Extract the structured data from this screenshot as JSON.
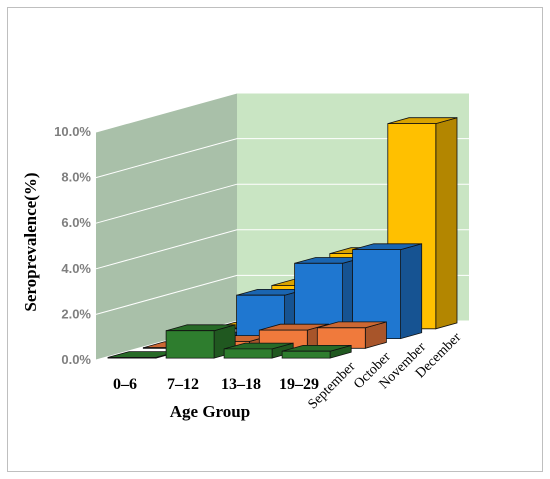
{
  "chart_data": {
    "type": "bar",
    "subtype": "3d-clustered-column",
    "xlabel": "Age Group",
    "ylabel": "Seroprevalence(%)",
    "categories": [
      "0–6",
      "7–12",
      "13–18",
      "19–29"
    ],
    "series": [
      {
        "name": "September",
        "values": [
          0.0,
          1.2,
          0.4,
          0.3
        ],
        "color": "#2e7d2e"
      },
      {
        "name": "October",
        "values": [
          0.0,
          0.3,
          0.8,
          0.9
        ],
        "color": "#f07a3c"
      },
      {
        "name": "November",
        "values": [
          0.0,
          1.9,
          3.3,
          3.9
        ],
        "color": "#1f77d0"
      },
      {
        "name": "December",
        "values": [
          0.0,
          1.9,
          3.3,
          9.0
        ],
        "color": "#ffc000"
      }
    ],
    "ylim": [
      0,
      10
    ],
    "yticks": [
      "0.0%",
      "2.0%",
      "4.0%",
      "6.0%",
      "8.0%",
      "10.0%"
    ],
    "grid": true
  }
}
